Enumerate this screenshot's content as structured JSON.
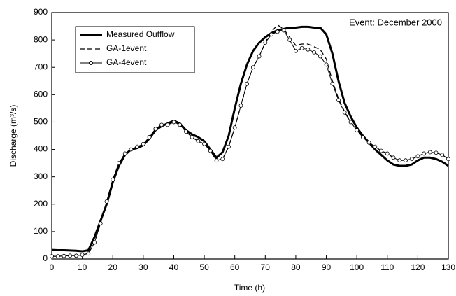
{
  "chart_data": {
    "type": "line",
    "xlabel": "Time (h)",
    "ylabel": "Discharge (m³/s)",
    "annotation": "Event: December 2000",
    "x": [
      0,
      2,
      4,
      6,
      8,
      10,
      12,
      14,
      16,
      18,
      20,
      22,
      24,
      26,
      28,
      30,
      32,
      34,
      36,
      38,
      40,
      42,
      44,
      46,
      48,
      50,
      52,
      54,
      56,
      58,
      60,
      62,
      64,
      66,
      68,
      70,
      72,
      74,
      76,
      78,
      80,
      82,
      84,
      86,
      88,
      90,
      92,
      94,
      96,
      98,
      100,
      102,
      104,
      106,
      108,
      110,
      112,
      114,
      116,
      118,
      120,
      122,
      124,
      126,
      128,
      130
    ],
    "series": [
      {
        "name": "Measured Outflow",
        "color": "#000000",
        "style": "solid",
        "width": 3,
        "values": [
          33,
          32,
          32,
          31,
          30,
          28,
          32,
          80,
          140,
          200,
          280,
          340,
          380,
          400,
          405,
          415,
          440,
          470,
          485,
          495,
          505,
          495,
          470,
          455,
          445,
          430,
          400,
          370,
          390,
          450,
          550,
          640,
          710,
          760,
          790,
          810,
          825,
          835,
          840,
          845,
          845,
          848,
          848,
          845,
          845,
          820,
          750,
          650,
          570,
          520,
          480,
          450,
          425,
          400,
          380,
          360,
          345,
          340,
          340,
          345,
          360,
          370,
          370,
          365,
          355,
          340
        ]
      },
      {
        "name": "GA-1event",
        "color": "#000000",
        "style": "dash",
        "width": 1.3,
        "values": [
          10,
          10,
          11,
          12,
          12,
          15,
          20,
          60,
          130,
          210,
          290,
          350,
          385,
          400,
          410,
          420,
          445,
          475,
          490,
          490,
          500,
          490,
          465,
          445,
          430,
          420,
          395,
          360,
          365,
          410,
          480,
          560,
          640,
          700,
          740,
          790,
          830,
          855,
          840,
          810,
          780,
          785,
          785,
          775,
          765,
          730,
          650,
          585,
          538,
          502,
          470,
          445,
          425,
          410,
          395,
          385,
          370,
          360,
          360,
          365,
          375,
          385,
          390,
          388,
          380,
          365
        ]
      },
      {
        "name": "GA-4event",
        "color": "#000000",
        "style": "solid",
        "width": 1,
        "marker": "circle",
        "values": [
          10,
          10,
          11,
          12,
          12,
          15,
          20,
          60,
          130,
          210,
          290,
          350,
          385,
          400,
          410,
          420,
          445,
          475,
          490,
          490,
          500,
          490,
          465,
          445,
          430,
          420,
          395,
          360,
          365,
          410,
          480,
          560,
          640,
          700,
          740,
          790,
          820,
          830,
          835,
          800,
          760,
          770,
          765,
          755,
          740,
          710,
          640,
          580,
          535,
          500,
          470,
          445,
          425,
          410,
          395,
          385,
          370,
          360,
          360,
          365,
          375,
          385,
          390,
          388,
          380,
          365
        ]
      }
    ],
    "xlim": [
      0,
      130
    ],
    "xticks": [
      0,
      10,
      20,
      30,
      40,
      50,
      60,
      70,
      80,
      90,
      100,
      110,
      120,
      130
    ],
    "ylim": [
      0,
      900
    ],
    "yticks": [
      0,
      100,
      200,
      300,
      400,
      500,
      600,
      700,
      800,
      900
    ],
    "grid": false,
    "legend": "upper left"
  }
}
